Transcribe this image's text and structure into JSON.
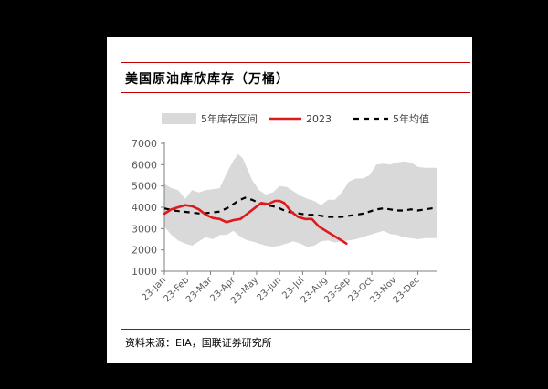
{
  "title": "美国原油库欣库存（万桶）",
  "source": "资料来源：EIA，国联证券研究所",
  "colors": {
    "band": "#d9d9d9",
    "line2023": "#e0191c",
    "avg": "#000000",
    "accent_rule": "#c00000"
  },
  "chart_data": {
    "type": "line",
    "title": "美国原油库欣库存（万桶）",
    "xlabel": "",
    "ylabel": "",
    "ylim": [
      1000,
      7000
    ],
    "yticks": [
      1000,
      2000,
      3000,
      4000,
      5000,
      6000,
      7000
    ],
    "xlim": [
      1,
      12.85
    ],
    "categories": [
      "23-Jan",
      "23-Feb",
      "23-Mar",
      "23-Apr",
      "23-May",
      "23-Jun",
      "23-Jul",
      "23-Aug",
      "23-Sep",
      "23-Oct",
      "23-Nov",
      "23-Dec"
    ],
    "legend_position": "top",
    "grid": false,
    "series": [
      {
        "name": "5年库存区间",
        "kind": "band",
        "x": [
          1.0,
          1.3,
          1.6,
          1.9,
          2.2,
          2.5,
          2.8,
          3.1,
          3.4,
          3.7,
          4.0,
          4.2,
          4.4,
          4.6,
          4.8,
          5.1,
          5.4,
          5.7,
          6.0,
          6.3,
          6.6,
          6.9,
          7.2,
          7.5,
          7.8,
          8.1,
          8.4,
          8.7,
          9.0,
          9.3,
          9.6,
          9.9,
          10.2,
          10.5,
          10.8,
          11.1,
          11.4,
          11.7,
          12.0,
          12.3,
          12.6,
          12.85
        ],
        "upper": [
          5100,
          4900,
          4800,
          4400,
          4800,
          4700,
          4800,
          4850,
          4900,
          5600,
          6200,
          6500,
          6300,
          5800,
          5300,
          4800,
          4600,
          4700,
          5000,
          4950,
          4750,
          4550,
          4400,
          4300,
          4100,
          4350,
          4350,
          4700,
          5200,
          5350,
          5350,
          5500,
          6000,
          6050,
          6000,
          6100,
          6150,
          6100,
          5900,
          5850,
          5850,
          5850
        ],
        "lower": [
          3100,
          2700,
          2450,
          2300,
          2200,
          2400,
          2600,
          2500,
          2700,
          2700,
          2900,
          2700,
          2550,
          2450,
          2400,
          2300,
          2200,
          2150,
          2200,
          2300,
          2400,
          2300,
          2150,
          2200,
          2400,
          2450,
          2350,
          2400,
          2450,
          2500,
          2600,
          2700,
          2800,
          2900,
          2750,
          2700,
          2600,
          2550,
          2500,
          2550,
          2550,
          2550
        ]
      },
      {
        "name": "2023",
        "kind": "line",
        "x": [
          1.0,
          1.3,
          1.6,
          1.9,
          2.2,
          2.5,
          2.8,
          3.1,
          3.4,
          3.7,
          4.0,
          4.3,
          4.6,
          4.9,
          5.2,
          5.5,
          5.8,
          6.0,
          6.2,
          6.5,
          6.8,
          7.1,
          7.4,
          7.7,
          8.0,
          8.3,
          8.6,
          8.9
        ],
        "values": [
          3700,
          3900,
          4000,
          4100,
          4050,
          3900,
          3650,
          3500,
          3450,
          3300,
          3400,
          3450,
          3700,
          3950,
          4200,
          4150,
          4300,
          4300,
          4200,
          3800,
          3550,
          3450,
          3450,
          3100,
          2900,
          2700,
          2500,
          2300
        ]
      },
      {
        "name": "5年均值",
        "kind": "dashed",
        "x": [
          1.0,
          1.4,
          1.8,
          2.2,
          2.6,
          3.0,
          3.4,
          3.8,
          4.2,
          4.5,
          4.8,
          5.1,
          5.4,
          5.7,
          6.0,
          6.3,
          6.6,
          6.9,
          7.2,
          7.5,
          7.8,
          8.1,
          8.4,
          8.7,
          9.0,
          9.3,
          9.6,
          9.9,
          10.2,
          10.5,
          10.8,
          11.1,
          11.4,
          11.7,
          12.0,
          12.3,
          12.6,
          12.85
        ],
        "values": [
          3950,
          3850,
          3800,
          3750,
          3700,
          3750,
          3800,
          4000,
          4300,
          4450,
          4350,
          4200,
          4100,
          4050,
          3950,
          3800,
          3750,
          3700,
          3650,
          3650,
          3600,
          3550,
          3550,
          3550,
          3600,
          3650,
          3700,
          3800,
          3900,
          3950,
          3900,
          3850,
          3850,
          3900,
          3850,
          3900,
          3950,
          3950
        ]
      }
    ]
  }
}
